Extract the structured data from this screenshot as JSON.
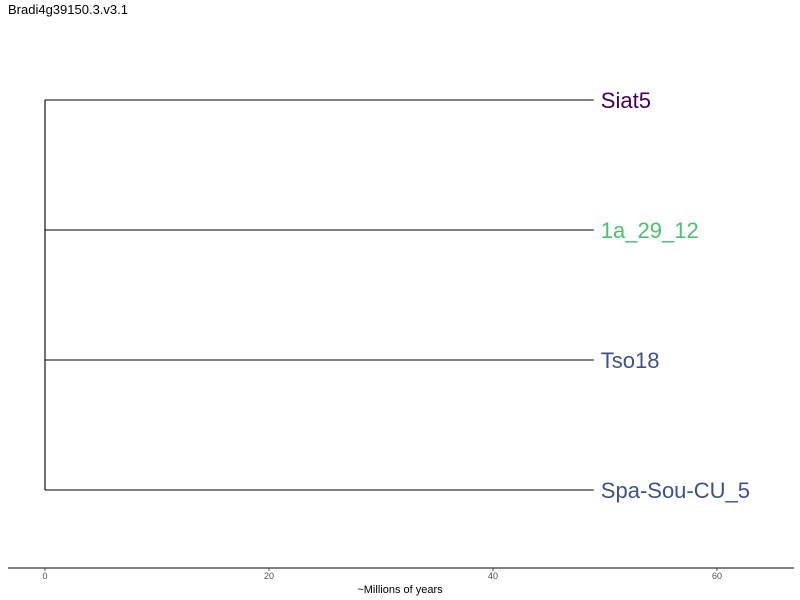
{
  "chart_data": {
    "type": "dendrogram",
    "title": "Bradi4g39150.3.v3.1",
    "xlabel": "~Millions of years",
    "xlim": [
      0,
      67
    ],
    "x_ticks": [
      0,
      20,
      40,
      60
    ],
    "root_x": 0,
    "tips": [
      {
        "label": "Siat5",
        "x": 49,
        "color": "#440154"
      },
      {
        "label": "1a_29_12",
        "x": 49,
        "color": "#4AC16D"
      },
      {
        "label": "Tso18",
        "x": 49,
        "color": "#3B528B"
      },
      {
        "label": "Spa-Sou-CU_5",
        "x": 49,
        "color": "#3B528B"
      }
    ],
    "branch_color": "#000000",
    "axis_color": "#000000"
  }
}
